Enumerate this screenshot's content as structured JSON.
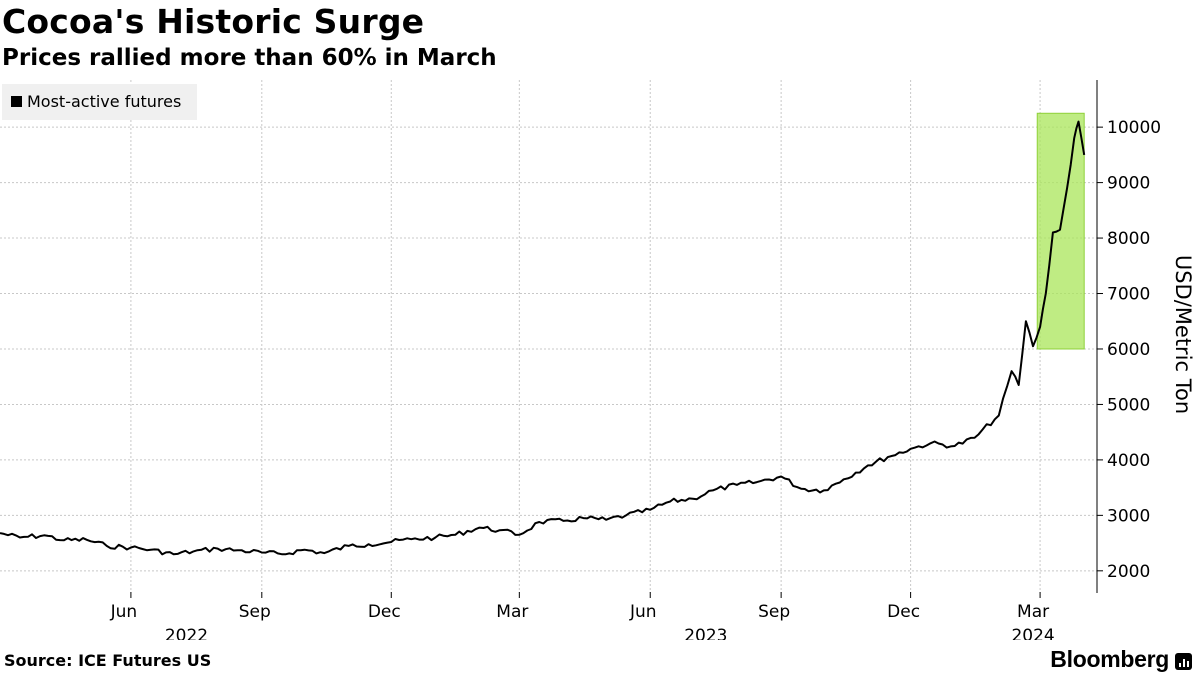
{
  "header": {
    "title": "Cocoa's Historic Surge",
    "subtitle": "Prices rallied more than 60% in March"
  },
  "footer": {
    "source": "Source: ICE Futures US",
    "brand": "Bloomberg",
    "brand_icon": "bloomberg-chart-icon"
  },
  "chart_data": {
    "type": "line",
    "title": "Cocoa's Historic Surge",
    "subtitle": "Prices rallied more than 60% in March",
    "ylabel": "USD/Metric Ton",
    "xlabel": "",
    "ylim": [
      1600,
      10850
    ],
    "xlim": [
      "2022-03-01",
      "2024-04-10"
    ],
    "y_ticks": [
      2000,
      3000,
      4000,
      5000,
      6000,
      7000,
      8000,
      9000,
      10000
    ],
    "x_ticks": [
      {
        "date": "2022-06-01",
        "label": "Jun"
      },
      {
        "date": "2022-09-01",
        "label": "Sep"
      },
      {
        "date": "2022-12-01",
        "label": "Dec"
      },
      {
        "date": "2023-03-01",
        "label": "Mar"
      },
      {
        "date": "2023-06-01",
        "label": "Jun"
      },
      {
        "date": "2023-09-01",
        "label": "Sep"
      },
      {
        "date": "2023-12-01",
        "label": "Dec"
      },
      {
        "date": "2024-03-01",
        "label": "Mar"
      }
    ],
    "year_labels": [
      {
        "date": "2022-07-15",
        "label": "2022"
      },
      {
        "date": "2023-07-15",
        "label": "2023"
      },
      {
        "date": "2024-03-01",
        "label": "2024"
      }
    ],
    "grid": true,
    "legend_position": "top-left",
    "highlight": {
      "x_start": "2024-02-28",
      "x_end": "2024-04-01",
      "y_start": 6000,
      "y_end": 10250,
      "color": "#a9e65a"
    },
    "colors": {
      "line": "#000000",
      "highlight": "#a9e65a",
      "grid": "#c8c8c8"
    },
    "series": [
      {
        "name": "Most-active futures",
        "points": [
          [
            "2022-03-01",
            2680
          ],
          [
            "2022-03-15",
            2600
          ],
          [
            "2022-04-01",
            2640
          ],
          [
            "2022-04-15",
            2550
          ],
          [
            "2022-05-01",
            2560
          ],
          [
            "2022-05-15",
            2450
          ],
          [
            "2022-06-01",
            2420
          ],
          [
            "2022-06-15",
            2380
          ],
          [
            "2022-07-01",
            2300
          ],
          [
            "2022-07-15",
            2350
          ],
          [
            "2022-08-01",
            2400
          ],
          [
            "2022-08-15",
            2370
          ],
          [
            "2022-09-01",
            2330
          ],
          [
            "2022-09-15",
            2300
          ],
          [
            "2022-10-01",
            2380
          ],
          [
            "2022-10-15",
            2320
          ],
          [
            "2022-11-01",
            2450
          ],
          [
            "2022-11-15",
            2480
          ],
          [
            "2022-12-01",
            2520
          ],
          [
            "2022-12-15",
            2570
          ],
          [
            "2023-01-01",
            2600
          ],
          [
            "2023-01-15",
            2650
          ],
          [
            "2023-02-01",
            2780
          ],
          [
            "2023-02-15",
            2730
          ],
          [
            "2023-03-01",
            2650
          ],
          [
            "2023-03-15",
            2880
          ],
          [
            "2023-04-01",
            2900
          ],
          [
            "2023-04-15",
            2950
          ],
          [
            "2023-05-01",
            2920
          ],
          [
            "2023-05-15",
            3000
          ],
          [
            "2023-06-01",
            3100
          ],
          [
            "2023-06-15",
            3250
          ],
          [
            "2023-07-01",
            3300
          ],
          [
            "2023-07-15",
            3450
          ],
          [
            "2023-08-01",
            3550
          ],
          [
            "2023-08-15",
            3600
          ],
          [
            "2023-09-01",
            3700
          ],
          [
            "2023-09-15",
            3480
          ],
          [
            "2023-10-01",
            3450
          ],
          [
            "2023-10-15",
            3650
          ],
          [
            "2023-11-01",
            3900
          ],
          [
            "2023-11-15",
            4050
          ],
          [
            "2023-12-01",
            4200
          ],
          [
            "2023-12-15",
            4300
          ],
          [
            "2024-01-01",
            4250
          ],
          [
            "2024-01-15",
            4400
          ],
          [
            "2024-02-01",
            4800
          ],
          [
            "2024-02-10",
            5600
          ],
          [
            "2024-02-15",
            5350
          ],
          [
            "2024-02-20",
            6500
          ],
          [
            "2024-02-25",
            6050
          ],
          [
            "2024-03-01",
            6400
          ],
          [
            "2024-03-05",
            7000
          ],
          [
            "2024-03-10",
            8100
          ],
          [
            "2024-03-15",
            8150
          ],
          [
            "2024-03-20",
            8900
          ],
          [
            "2024-03-25",
            9800
          ],
          [
            "2024-03-28",
            10100
          ],
          [
            "2024-04-01",
            9500
          ]
        ]
      }
    ]
  }
}
